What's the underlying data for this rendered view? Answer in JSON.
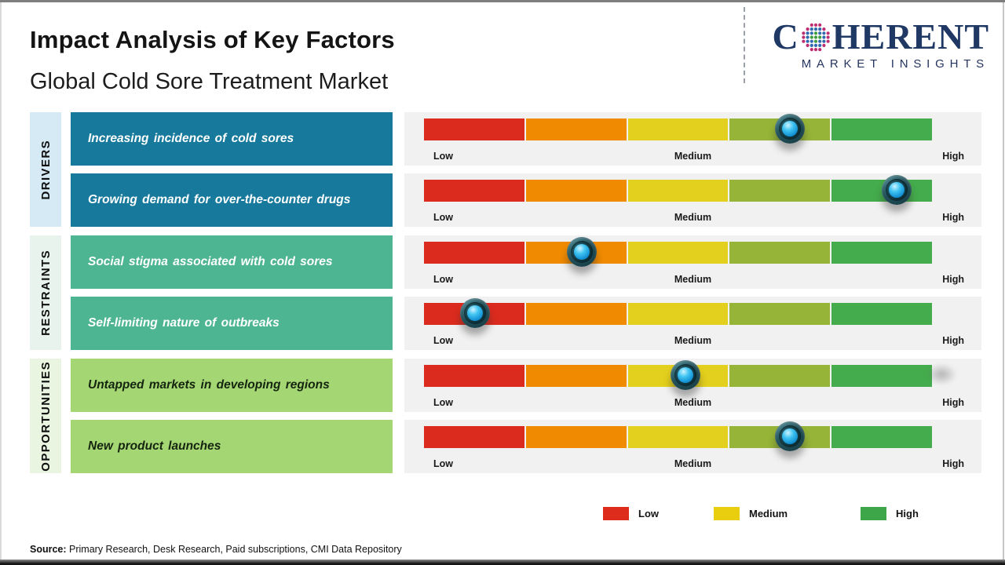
{
  "page": {
    "title": "Impact Analysis of Key Factors",
    "subtitle": "Global Cold Sore Treatment Market",
    "source_label": "Source:",
    "source_text": " Primary Research, Desk Research, Paid subscriptions, CMI Data Repository"
  },
  "logo": {
    "word_start": "C",
    "word_end": "HERENT",
    "tagline": "MARKET INSIGHTS",
    "navy": "#1f3864",
    "globe_dot_colors": {
      "inner": "#3e9d3c",
      "middle": "#3069ae",
      "outer": "#be2d72"
    }
  },
  "chart_data": {
    "type": "heatmap",
    "description": "Impact rating scale per factor; marker position expressed as percent along a Low-to-High five-segment scale",
    "scale_labels": [
      "Low",
      "Medium",
      "High"
    ],
    "segment_colors": [
      "#db2b1e",
      "#f08a01",
      "#e3cf1d",
      "#96b437",
      "#44ac4c"
    ],
    "panel_bg": "#f1f1f1",
    "groups": [
      {
        "label": "DRIVERS",
        "label_bg": "#d6eaf6",
        "box_color": "#17799c",
        "text_color": "#ffffff",
        "factors": [
          {
            "text": "Increasing incidence of cold sores",
            "impact_pct": 72
          },
          {
            "text": "Growing demand for over-the-counter drugs",
            "impact_pct": 93
          }
        ]
      },
      {
        "label": "RESTRAINTS",
        "label_bg": "#e9f3ee",
        "box_color": "#4eb593",
        "text_color": "#ffffff",
        "factors": [
          {
            "text": "Social stigma associated with cold sores",
            "impact_pct": 31
          },
          {
            "text": "Self-limiting nature of outbreaks",
            "impact_pct": 10
          }
        ]
      },
      {
        "label": "OPPORTUNITIES",
        "label_bg": "#e9f5e0",
        "box_color": "#a4d773",
        "text_color": "#15240f",
        "factors": [
          {
            "text": "Untapped markets in developing regions",
            "impact_pct": 51.5,
            "artifact_shadow": true
          },
          {
            "text": "New product launches",
            "impact_pct": 72
          }
        ]
      }
    ],
    "legend": [
      {
        "label": "Low",
        "color": "#dd2b1c"
      },
      {
        "label": "Medium",
        "color": "#e8ce0f"
      },
      {
        "label": "High",
        "color": "#3da648"
      }
    ]
  }
}
